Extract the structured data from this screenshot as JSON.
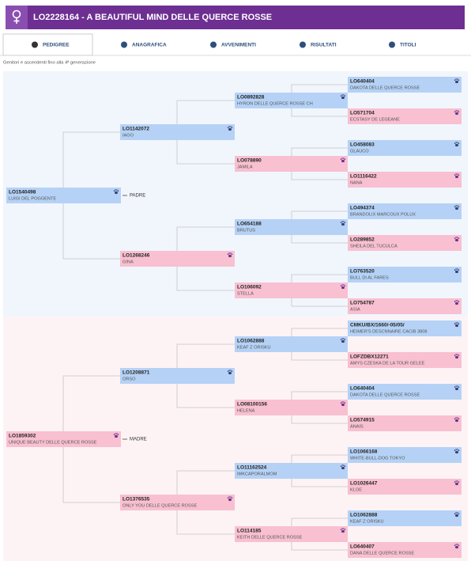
{
  "header": {
    "title": "LO2228164 - A BEAUTIFUL MIND DELLE QUERCE ROSSE"
  },
  "tabs": [
    "PEDIGREE",
    "ANAGRAFICA",
    "AVVENIMENTI",
    "RISULTATI",
    "TITOLI"
  ],
  "subtitle": "Genitori e ascendenti fino alla 4ª generazione",
  "pedigree": [
    {
      "label": "PADRE",
      "generations": [
        [
          {
            "id": "LO1540498",
            "name": "LUIGI DEL POGGENTE"
          }
        ],
        [
          {
            "id": "LO1142072",
            "name": "IAGO"
          },
          {
            "id": "LO1268246",
            "name": "GINA"
          }
        ],
        [
          {
            "id": "LO0892828",
            "name": "HYRON DELLE QUERCE ROSSE CH"
          },
          {
            "id": "LO078890",
            "name": "JAMILA"
          },
          {
            "id": "LO654188",
            "name": "BRUTUS"
          },
          {
            "id": "LO106092",
            "name": "STELLA"
          }
        ],
        [
          {
            "id": "LO640404",
            "name": "DAKOTA DELLE QUERCE ROSSE"
          },
          {
            "id": "LO571704",
            "name": "ECSTASY DE LEGEANE"
          },
          {
            "id": "LO458083",
            "name": "GLAUCO"
          },
          {
            "id": "LO1116422",
            "name": "NANA"
          },
          {
            "id": "LO494374",
            "name": "BRANDOLIX MARCOUX POLUX"
          },
          {
            "id": "LO289852",
            "name": "SHEILA DEL TUCULCA"
          },
          {
            "id": "LO763520",
            "name": "BULL DI AL FARES"
          },
          {
            "id": "LO754787",
            "name": "ASIA"
          }
        ]
      ]
    },
    {
      "label": "MADRE",
      "generations": [
        [
          {
            "id": "LO1859302",
            "name": "UNIQUE BEAUTY DELLE QUERCE ROSSE"
          }
        ],
        [
          {
            "id": "LO1208871",
            "name": "ORSO"
          },
          {
            "id": "LO1376535",
            "name": "ONLY YOU DELLE QUERCE ROSSE"
          }
        ],
        [
          {
            "id": "LO1062888",
            "name": "KEAF Z ORISKU"
          },
          {
            "id": "LO08100156",
            "name": "HELENA"
          },
          {
            "id": "LO11162524",
            "name": "IMKCAPORALMOM"
          },
          {
            "id": "LO114185",
            "name": "KEITH DELLE QUERCE ROSSE"
          }
        ],
        [
          {
            "id": "CMKU/BX/1660/-05/05/",
            "name": "HEIMER'S DESCNNAIRE CACIB 3808"
          },
          {
            "id": "LOFZDBX12271",
            "name": "AMYS CZESKA DE LA TOUR GELEE"
          },
          {
            "id": "LO640404",
            "name": "DAKOTA DELLE QUERCE ROSSE"
          },
          {
            "id": "LO574915",
            "name": "ANAIS"
          },
          {
            "id": "LO1066168",
            "name": "WHITE-BULL-DOG TOKYO"
          },
          {
            "id": "LO1026447",
            "name": "KLOE"
          },
          {
            "id": "LO1062888",
            "name": "KEAF Z ORISKU"
          },
          {
            "id": "LO640407",
            "name": "DANA DELLE QUERCE ROSSE"
          }
        ]
      ]
    }
  ]
}
